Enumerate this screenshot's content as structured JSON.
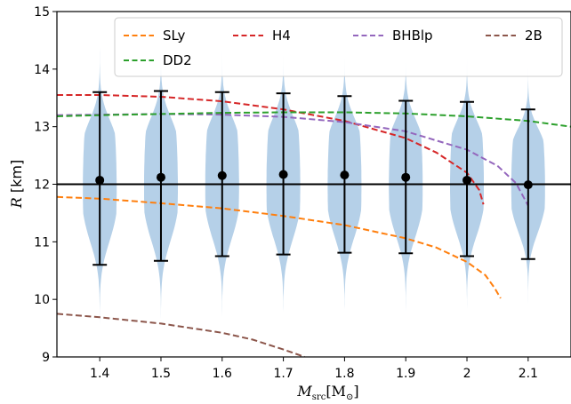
{
  "chart_data": {
    "type": "violin",
    "xlabel": "M",
    "xlabel_sub": "src",
    "xlabel_unit": "[M",
    "xlabel_unit_sub": "⊙",
    "xlabel_unit_close": "]",
    "ylabel_var": "R",
    "ylabel_unit": " [km]",
    "xlim": [
      1.33,
      2.17
    ],
    "ylim": [
      9,
      15
    ],
    "x_ticks": [
      1.4,
      1.5,
      1.6,
      1.7,
      1.8,
      1.9,
      2.0,
      2.1
    ],
    "x_tick_labels": [
      "1.4",
      "1.5",
      "1.6",
      "1.7",
      "1.8",
      "1.9",
      "2",
      "2.1"
    ],
    "y_ticks": [
      9,
      10,
      11,
      12,
      13,
      14,
      15
    ],
    "y_tick_labels": [
      "9",
      "10",
      "11",
      "12",
      "13",
      "14",
      "15"
    ],
    "reference_line": 12.0,
    "violins": [
      {
        "x": 1.4,
        "median": 12.07,
        "low": 10.6,
        "high": 13.6,
        "ymin": 9.3,
        "ymax": 14.55
      },
      {
        "x": 1.5,
        "median": 12.12,
        "low": 10.67,
        "high": 13.62,
        "ymin": 9.3,
        "ymax": 14.6
      },
      {
        "x": 1.6,
        "median": 12.15,
        "low": 10.75,
        "high": 13.6,
        "ymin": 9.35,
        "ymax": 14.6
      },
      {
        "x": 1.7,
        "median": 12.17,
        "low": 10.78,
        "high": 13.58,
        "ymin": 9.35,
        "ymax": 14.6
      },
      {
        "x": 1.8,
        "median": 12.16,
        "low": 10.81,
        "high": 13.53,
        "ymin": 9.4,
        "ymax": 14.55
      },
      {
        "x": 1.9,
        "median": 12.12,
        "low": 10.8,
        "high": 13.45,
        "ymin": 9.45,
        "ymax": 14.5
      },
      {
        "x": 2.0,
        "median": 12.07,
        "low": 10.75,
        "high": 13.43,
        "ymin": 9.5,
        "ymax": 14.45
      },
      {
        "x": 2.1,
        "median": 11.99,
        "low": 10.7,
        "high": 13.3,
        "ymin": 9.7,
        "ymax": 14.2
      }
    ],
    "violin_color": "#b5d0e8",
    "series": [
      {
        "name": "SLy",
        "color": "#ff7f0e",
        "x": [
          1.33,
          1.4,
          1.5,
          1.6,
          1.7,
          1.8,
          1.9,
          1.95,
          2.0,
          2.03,
          2.045,
          2.055
        ],
        "y": [
          11.78,
          11.75,
          11.67,
          11.58,
          11.45,
          11.29,
          11.06,
          10.9,
          10.65,
          10.42,
          10.2,
          10.02
        ]
      },
      {
        "name": "H4",
        "color": "#d62728",
        "x": [
          1.33,
          1.4,
          1.5,
          1.6,
          1.7,
          1.8,
          1.9,
          1.95,
          2.0,
          2.02,
          2.027
        ],
        "y": [
          13.55,
          13.55,
          13.52,
          13.44,
          13.3,
          13.1,
          12.8,
          12.55,
          12.2,
          11.9,
          11.65
        ]
      },
      {
        "name": "BHBlp",
        "color": "#9467bd",
        "x": [
          1.33,
          1.4,
          1.5,
          1.6,
          1.7,
          1.8,
          1.9,
          2.0,
          2.05,
          2.08,
          2.1
        ],
        "y": [
          13.2,
          13.21,
          13.22,
          13.21,
          13.17,
          13.08,
          12.92,
          12.6,
          12.32,
          12.02,
          11.63
        ]
      },
      {
        "name": "2B",
        "color": "#8c564b",
        "x": [
          1.33,
          1.4,
          1.5,
          1.6,
          1.65,
          1.7,
          1.735
        ],
        "y": [
          9.75,
          9.69,
          9.58,
          9.42,
          9.3,
          9.13,
          9.0
        ]
      },
      {
        "name": "DD2",
        "color": "#2ca02c",
        "x": [
          1.33,
          1.4,
          1.5,
          1.6,
          1.7,
          1.8,
          1.9,
          2.0,
          2.1,
          2.17
        ],
        "y": [
          13.18,
          13.2,
          13.22,
          13.24,
          13.25,
          13.25,
          13.23,
          13.18,
          13.1,
          13.0
        ]
      }
    ],
    "legend": {
      "placement": "upper",
      "columns": 4,
      "entries": [
        "SLy",
        "H4",
        "BHBlp",
        "2B",
        "DD2"
      ]
    }
  }
}
